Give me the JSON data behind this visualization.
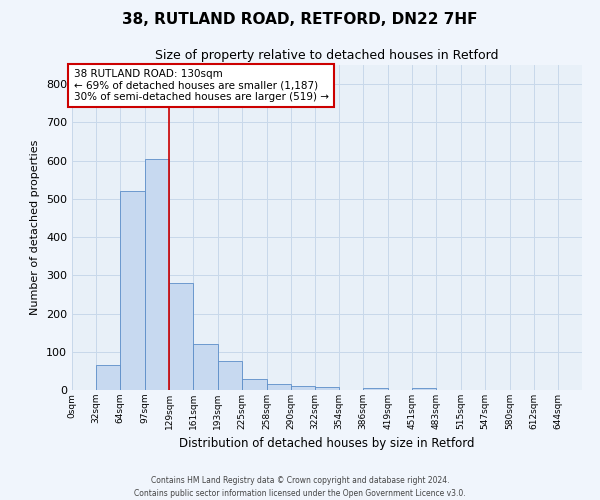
{
  "title_line1": "38, RUTLAND ROAD, RETFORD, DN22 7HF",
  "title_line2": "Size of property relative to detached houses in Retford",
  "xlabel": "Distribution of detached houses by size in Retford",
  "ylabel": "Number of detached properties",
  "bin_labels": [
    "0sqm",
    "32sqm",
    "64sqm",
    "97sqm",
    "129sqm",
    "161sqm",
    "193sqm",
    "225sqm",
    "258sqm",
    "290sqm",
    "322sqm",
    "354sqm",
    "386sqm",
    "419sqm",
    "451sqm",
    "483sqm",
    "515sqm",
    "547sqm",
    "580sqm",
    "612sqm",
    "644sqm"
  ],
  "bar_heights": [
    0,
    65,
    520,
    605,
    280,
    120,
    75,
    28,
    15,
    10,
    8,
    0,
    5,
    0,
    5,
    0,
    0,
    0,
    0,
    0,
    0
  ],
  "bar_color": "#c7d9f0",
  "bar_edge_color": "#5b8dc8",
  "property_line_x": 129,
  "bins_start": [
    0,
    32,
    64,
    97,
    129,
    161,
    193,
    225,
    258,
    290,
    322,
    354,
    386,
    419,
    451,
    483,
    515,
    547,
    580,
    612,
    644
  ],
  "annotation_text_line1": "38 RUTLAND ROAD: 130sqm",
  "annotation_text_line2": "← 69% of detached houses are smaller (1,187)",
  "annotation_text_line3": "30% of semi-detached houses are larger (519) →",
  "annotation_box_color": "#ffffff",
  "annotation_box_edge_color": "#cc0000",
  "property_line_color": "#cc0000",
  "ylim": [
    0,
    850
  ],
  "yticks": [
    0,
    100,
    200,
    300,
    400,
    500,
    600,
    700,
    800
  ],
  "grid_color": "#c8d8ea",
  "background_color": "#e8f0f8",
  "fig_background_color": "#f0f5fc",
  "footer_line1": "Contains HM Land Registry data © Crown copyright and database right 2024.",
  "footer_line2": "Contains public sector information licensed under the Open Government Licence v3.0."
}
